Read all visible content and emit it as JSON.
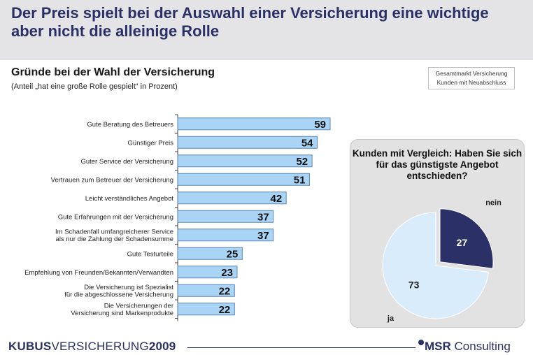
{
  "header": {
    "title": "Der Preis spielt bei der Auswahl einer Versicherung eine wichtige aber nicht die alleinige Rolle"
  },
  "chart_section": {
    "subtitle": "Gründe bei der Wahl der Versicherung",
    "note": "(Anteil „hat eine große Rolle gespielt“ in Prozent)",
    "legend_line1": "Gesamtmarkt Versicherung",
    "legend_line2": "Kunden mit Neuabschluss"
  },
  "pie_section": {
    "title": "Kunden mit Vergleich: Haben Sie sich für das günstigste Angebot entschieden?"
  },
  "footer": {
    "brand_bold": "KUBUS",
    "brand_light": "VERSICHERUNG",
    "brand_year": "2009",
    "company_bold": "MSR",
    "company_light": " Consulting"
  },
  "colors": {
    "bar_fill": "#a9d4f5",
    "bar_stroke": "#5a88b5",
    "pie_ja": "#d9ecfb",
    "pie_nein": "#2b3166",
    "brand": "#2b3166"
  },
  "chart_data": [
    {
      "type": "bar",
      "orientation": "horizontal",
      "categories": [
        [
          "Gute Beratung des Betreuers"
        ],
        [
          "Günstiger Preis"
        ],
        [
          "Guter Service der Versicherung"
        ],
        [
          "Vertrauen zum Betreuer der Versicherung"
        ],
        [
          "Leicht verständliches Angebot"
        ],
        [
          "Gute Erfahrungen mit der Versicherung"
        ],
        [
          "Im Schadenfall umfangreicherer Service",
          "als nur die Zahlung der Schadensumme"
        ],
        [
          "Gute Testurteile"
        ],
        [
          "Empfehlung von Freunden/Bekannten/Verwandten"
        ],
        [
          "Die Versicherung ist Spezialist",
          "für die abgeschlossene Versicherung"
        ],
        [
          "Die Versicherungen der",
          "Versicherung sind Markenprodukte"
        ]
      ],
      "values": [
        59,
        54,
        52,
        51,
        42,
        37,
        37,
        25,
        23,
        22,
        22
      ],
      "data_labels": true,
      "xlim": [
        0,
        100
      ]
    },
    {
      "type": "pie",
      "labels": [
        "nein",
        "ja"
      ],
      "values": [
        27,
        73
      ]
    }
  ]
}
